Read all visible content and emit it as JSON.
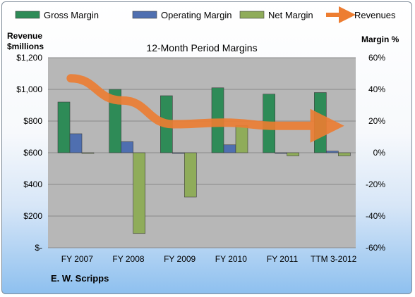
{
  "chart_data": {
    "type": "bar",
    "title": "12-Month Period Margins",
    "company": "E. W. Scripps",
    "left_axis_label_line1": "Revenue",
    "left_axis_label_line2": "$millions",
    "right_axis_label": "Margin %",
    "categories": [
      "FY 2007",
      "FY 2008",
      "FY 2009",
      "FY 2010",
      "FY 2011",
      "TTM 3-2012"
    ],
    "series": [
      {
        "name": "Gross Margin",
        "kind": "bar",
        "axis": "right",
        "color": "#2e8b57",
        "values": [
          32,
          40,
          36,
          41,
          37,
          38
        ]
      },
      {
        "name": "Operating Margin",
        "kind": "bar",
        "axis": "right",
        "color": "#4f6fb0",
        "values": [
          12,
          7,
          0,
          5,
          0,
          1
        ]
      },
      {
        "name": "Net Margin",
        "kind": "bar",
        "axis": "right",
        "color": "#8fac5a",
        "values": [
          0,
          -51,
          -28,
          17,
          -2,
          -2
        ]
      },
      {
        "name": "Revenues",
        "kind": "line",
        "axis": "left",
        "color": "#ed7d31",
        "values": [
          1070,
          930,
          780,
          790,
          770,
          770
        ]
      }
    ],
    "left_axis": {
      "min": 0,
      "max": 1200,
      "ticks": [
        "$-",
        "$200",
        "$400",
        "$600",
        "$800",
        "$1,000",
        "$1,200"
      ]
    },
    "right_axis": {
      "min": -60,
      "max": 60,
      "ticks": [
        "-60%",
        "-40%",
        "-20%",
        "0%",
        "20%",
        "40%",
        "60%"
      ]
    },
    "grid": true,
    "legend_position": "top"
  }
}
